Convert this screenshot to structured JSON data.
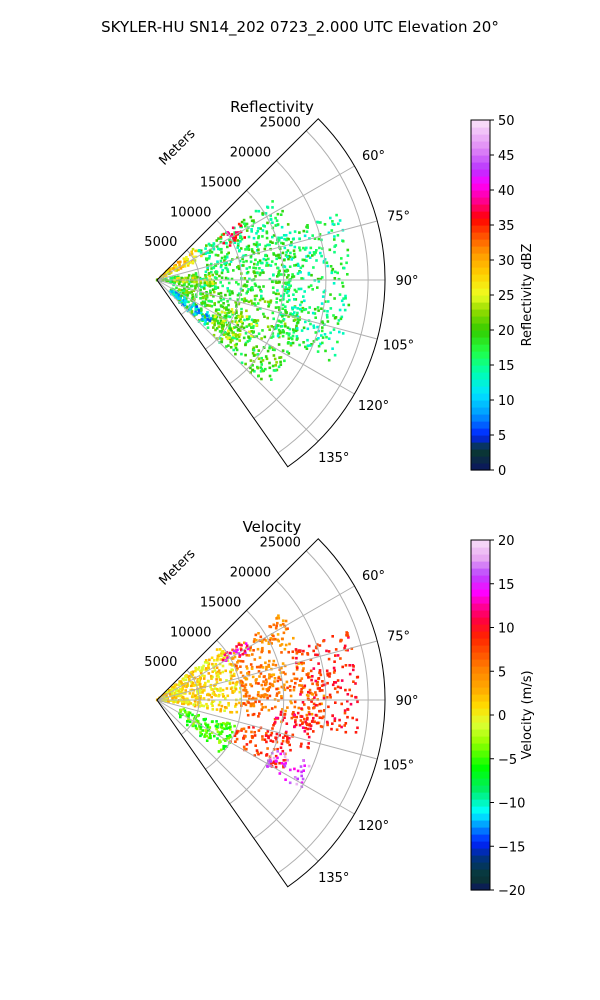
{
  "figure": {
    "suptitle": "SKYLER-HU  SN14_202  0723_2.000 UTC Elevation 20°"
  },
  "chart_data": [
    {
      "type": "polar-sector",
      "title": "Reflectivity",
      "r_axis_label": "Meters",
      "r_ticks": [
        5000,
        10000,
        15000,
        20000,
        25000
      ],
      "r_tick_labels": [
        "5000",
        "10000",
        "15000",
        "20000",
        "25000"
      ],
      "rlim": [
        0,
        27000
      ],
      "theta_range_deg": [
        45,
        145
      ],
      "theta_zero": "north",
      "theta_direction": "clockwise",
      "theta_ticks_deg": [
        60,
        75,
        90,
        105,
        120,
        135
      ],
      "theta_tick_labels": [
        "60°",
        "75°",
        "90°",
        "105°",
        "120°",
        "135°"
      ],
      "grid": true,
      "colorbar": {
        "label": "Reflectivity dBZ",
        "min": 0,
        "max": 50,
        "ticks": [
          0,
          5,
          10,
          15,
          20,
          25,
          30,
          35,
          40,
          45,
          50
        ],
        "tick_labels": [
          "0",
          "5",
          "10",
          "15",
          "20",
          "25",
          "30",
          "35",
          "40",
          "45",
          "50"
        ]
      },
      "fields": [
        {
          "theta_deg": [
            48,
            65
          ],
          "r_m": [
            0,
            6000
          ],
          "value": 27
        },
        {
          "theta_deg": [
            55,
            80
          ],
          "r_m": [
            6000,
            17000
          ],
          "value": 17
        },
        {
          "theta_deg": [
            55,
            65
          ],
          "r_m": [
            9000,
            12000
          ],
          "value": 36
        },
        {
          "theta_deg": [
            80,
            100
          ],
          "r_m": [
            0,
            16000
          ],
          "value": 18
        },
        {
          "theta_deg": [
            85,
            95
          ],
          "r_m": [
            2000,
            7000
          ],
          "value": 24
        },
        {
          "theta_deg": [
            100,
            135
          ],
          "r_m": [
            2000,
            18000
          ],
          "value": 19
        },
        {
          "theta_deg": [
            110,
            130
          ],
          "r_m": [
            8000,
            13000
          ],
          "value": 22
        },
        {
          "theta_deg": [
            122,
            135
          ],
          "r_m": [
            2000,
            8000
          ],
          "value": 10
        },
        {
          "theta_deg": [
            70,
            115
          ],
          "r_m": [
            15000,
            23000
          ],
          "value": 16
        }
      ]
    },
    {
      "type": "polar-sector",
      "title": "Velocity",
      "r_axis_label": "Meters",
      "r_ticks": [
        5000,
        10000,
        15000,
        20000,
        25000
      ],
      "r_tick_labels": [
        "5000",
        "10000",
        "15000",
        "20000",
        "25000"
      ],
      "rlim": [
        0,
        27000
      ],
      "theta_range_deg": [
        45,
        145
      ],
      "theta_zero": "north",
      "theta_direction": "clockwise",
      "theta_ticks_deg": [
        60,
        75,
        90,
        105,
        120,
        135
      ],
      "theta_tick_labels": [
        "60°",
        "75°",
        "90°",
        "105°",
        "120°",
        "135°"
      ],
      "grid": true,
      "colorbar": {
        "label": "Velocity (m/s)",
        "min": -20,
        "max": 20,
        "ticks": [
          -20,
          -15,
          -10,
          -5,
          0,
          5,
          10,
          15,
          20
        ],
        "tick_labels": [
          "−20",
          "−15",
          "−10",
          "−5",
          "0",
          "5",
          "10",
          "15",
          "20"
        ]
      },
      "fields": [
        {
          "theta_deg": [
            50,
            100
          ],
          "r_m": [
            0,
            10000
          ],
          "value": 1
        },
        {
          "theta_deg": [
            55,
            80
          ],
          "r_m": [
            10000,
            18000
          ],
          "value": 5
        },
        {
          "theta_deg": [
            55,
            62
          ],
          "r_m": [
            9000,
            13000
          ],
          "value": 13
        },
        {
          "theta_deg": [
            80,
            100
          ],
          "r_m": [
            10000,
            20000
          ],
          "value": 6
        },
        {
          "theta_deg": [
            95,
            108
          ],
          "r_m": [
            14000,
            19000
          ],
          "value": 10
        },
        {
          "theta_deg": [
            108,
            130
          ],
          "r_m": [
            3000,
            10000
          ],
          "value": -5
        },
        {
          "theta_deg": [
            105,
            120
          ],
          "r_m": [
            10000,
            17000
          ],
          "value": 8
        },
        {
          "theta_deg": [
            112,
            122
          ],
          "r_m": [
            15000,
            20000
          ],
          "value": 16
        },
        {
          "theta_deg": [
            70,
            100
          ],
          "r_m": [
            17000,
            24000
          ],
          "value": 9
        }
      ]
    }
  ]
}
